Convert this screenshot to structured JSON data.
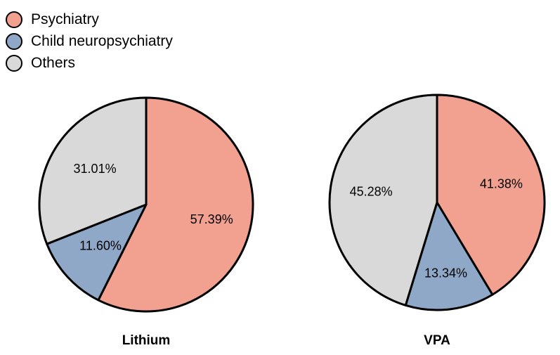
{
  "chart_data": [
    {
      "type": "pie",
      "title": "Lithium",
      "categories": [
        "Psychiatry",
        "Child neuropsychiatry",
        "Others"
      ],
      "values": [
        57.39,
        11.6,
        31.01
      ],
      "labels": [
        "57.39%",
        "11.60%",
        "31.01%"
      ],
      "colors": [
        "#f2a08f",
        "#8fa8c8",
        "#d9d9d9"
      ],
      "legend": "top-left"
    },
    {
      "type": "pie",
      "title": "VPA",
      "categories": [
        "Psychiatry",
        "Child neuropsychiatry",
        "Others"
      ],
      "values": [
        41.38,
        13.34,
        45.28
      ],
      "labels": [
        "41.38%",
        "13.34%",
        "45.28%"
      ],
      "colors": [
        "#f2a08f",
        "#8fa8c8",
        "#d9d9d9"
      ],
      "legend": "top-left"
    }
  ],
  "legend": {
    "items": [
      {
        "label": "Psychiatry",
        "color": "#f2a08f"
      },
      {
        "label": "Child neuropsychiatry",
        "color": "#8fa8c8"
      },
      {
        "label": "Others",
        "color": "#d9d9d9"
      }
    ]
  }
}
